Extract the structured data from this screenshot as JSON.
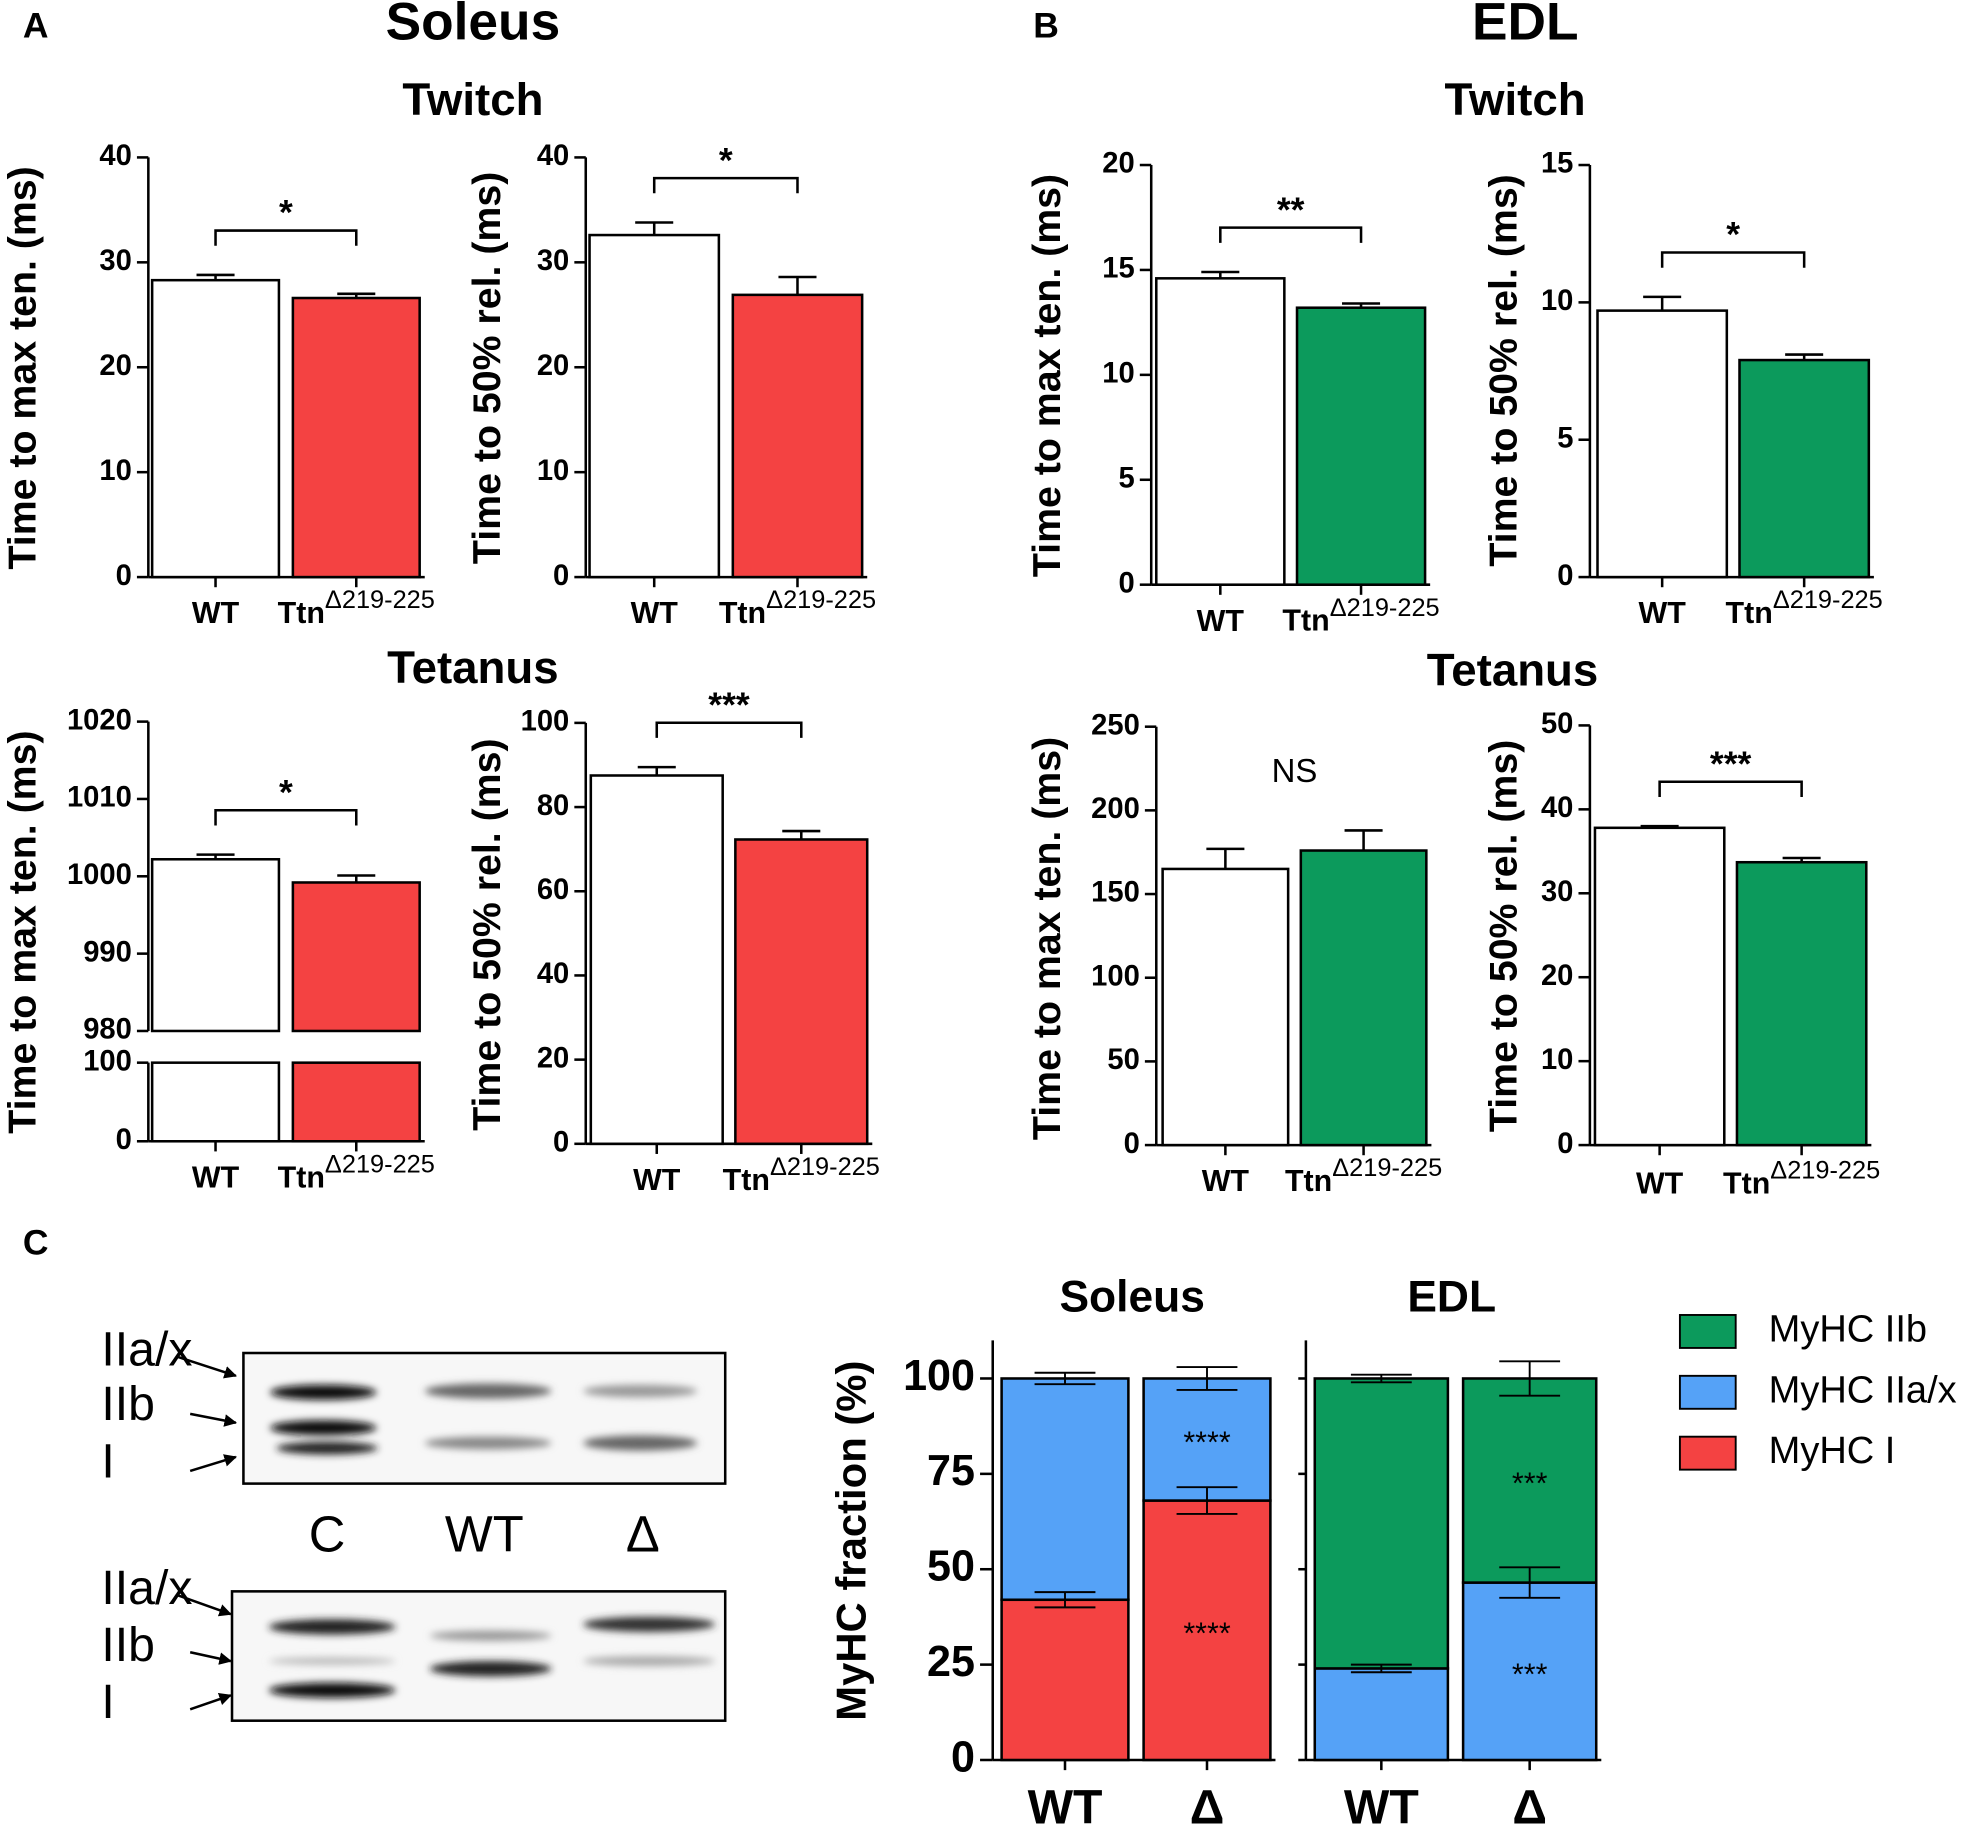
{
  "panels": [
    {
      "label": "A",
      "title": "Soleus",
      "sections": [
        "Twitch",
        "Tetanus"
      ]
    },
    {
      "label": "B",
      "title": "EDL",
      "sections": [
        "Twitch",
        "Tetanus"
      ]
    },
    {
      "label": "C"
    }
  ],
  "blot": {
    "gels": [
      {
        "bands": [
          "IIa/x",
          "IIb",
          "I"
        ]
      },
      {
        "bands": [
          "IIa/x",
          "IIb",
          "I"
        ]
      }
    ],
    "lanes": [
      "C",
      "WT",
      "Δ"
    ]
  },
  "chart_data": [
    {
      "type": "bar",
      "ylabel": "Time to max ten. (ms)",
      "categories": [
        "WT",
        "TtnΔ219-225"
      ],
      "values": [
        28.3,
        26.6
      ],
      "errors": [
        0.5,
        0.4
      ],
      "colors": [
        "#ffffff",
        "#f44242"
      ],
      "ylim": [
        0,
        40
      ],
      "yticks": [
        0,
        10,
        20,
        30,
        40
      ],
      "annotation": "*",
      "bracket": true
    },
    {
      "type": "bar",
      "ylabel": "Time to 50% rel. (ms)",
      "categories": [
        "WT",
        "TtnΔ219-225"
      ],
      "values": [
        32.6,
        26.9
      ],
      "errors": [
        1.2,
        1.7
      ],
      "colors": [
        "#ffffff",
        "#f44242"
      ],
      "ylim": [
        0,
        40
      ],
      "yticks": [
        0,
        10,
        20,
        30,
        40
      ],
      "annotation": "*",
      "bracket": true
    },
    {
      "type": "bar",
      "ylabel": "Time to max ten. (ms)",
      "categories": [
        "WT",
        "TtnΔ219-225"
      ],
      "values": [
        14.6,
        13.2
      ],
      "errors": [
        0.3,
        0.2
      ],
      "colors": [
        "#ffffff",
        "#0c9a5c"
      ],
      "ylim": [
        0,
        20
      ],
      "yticks": [
        0,
        5,
        10,
        15,
        20
      ],
      "annotation": "**",
      "bracket": true
    },
    {
      "type": "bar",
      "ylabel": "Time to 50% rel. (ms)",
      "categories": [
        "WT",
        "TtnΔ219-225"
      ],
      "values": [
        9.7,
        7.9
      ],
      "errors": [
        0.5,
        0.2
      ],
      "colors": [
        "#ffffff",
        "#0c9a5c"
      ],
      "ylim": [
        0,
        15
      ],
      "yticks": [
        0,
        5,
        10,
        15
      ],
      "annotation": "*",
      "bracket": true
    },
    {
      "type": "bar",
      "ylabel": "Time to max ten. (ms)",
      "categories": [
        "WT",
        "TtnΔ219-225"
      ],
      "values": [
        1002.2,
        999.2
      ],
      "errors": [
        0.6,
        0.9
      ],
      "colors": [
        "#ffffff",
        "#f44242"
      ],
      "ylim": [
        0,
        1020
      ],
      "ybreak": [
        100,
        980
      ],
      "yticks": [
        0,
        100,
        980,
        990,
        1000,
        1010,
        1020
      ],
      "annotation": "*",
      "bracket": true
    },
    {
      "type": "bar",
      "ylabel": "Time to 50% rel. (ms)",
      "categories": [
        "WT",
        "TtnΔ219-225"
      ],
      "values": [
        87.5,
        72.3
      ],
      "errors": [
        2,
        2
      ],
      "colors": [
        "#ffffff",
        "#f44242"
      ],
      "ylim": [
        0,
        100
      ],
      "yticks": [
        0,
        20,
        40,
        60,
        80,
        100
      ],
      "annotation": "***",
      "bracket": true
    },
    {
      "type": "bar",
      "ylabel": "Time to max ten. (ms)",
      "categories": [
        "WT",
        "TtnΔ219-225"
      ],
      "values": [
        165,
        176
      ],
      "errors": [
        12,
        12
      ],
      "colors": [
        "#ffffff",
        "#0c9a5c"
      ],
      "ylim": [
        0,
        250
      ],
      "yticks": [
        0,
        50,
        100,
        150,
        200,
        250
      ],
      "annotation": "NS",
      "bracket": false
    },
    {
      "type": "bar",
      "ylabel": "Time to 50% rel. (ms)",
      "categories": [
        "WT",
        "TtnΔ219-225"
      ],
      "values": [
        37.8,
        33.7
      ],
      "errors": [
        0.2,
        0.5
      ],
      "colors": [
        "#ffffff",
        "#0c9a5c"
      ],
      "ylim": [
        0,
        50
      ],
      "yticks": [
        0,
        10,
        20,
        30,
        40,
        50
      ],
      "annotation": "***",
      "bracket": true
    },
    {
      "type": "stacked_bar",
      "title": "Soleus",
      "ylabel": "MyHC fraction (%)",
      "categories": [
        "WT",
        "Δ"
      ],
      "ylim": [
        0,
        110
      ],
      "yticks": [
        0,
        25,
        50,
        75,
        100
      ],
      "show_tick_labels": true,
      "series": [
        {
          "name": "MyHC IIa/x",
          "color": "#55a2f7",
          "values": [
            58,
            32
          ],
          "errors": [
            1.5,
            3
          ],
          "annotations": [
            null,
            "****"
          ]
        },
        {
          "name": "MyHC I",
          "color": "#f44242",
          "values": [
            42,
            68
          ],
          "errors": [
            2,
            3.5
          ],
          "annotations": [
            null,
            "****"
          ]
        }
      ]
    },
    {
      "type": "stacked_bar",
      "title": "EDL",
      "categories": [
        "WT",
        "Δ"
      ],
      "ylim": [
        0,
        110
      ],
      "yticks": [
        0,
        25,
        50,
        75,
        100
      ],
      "show_tick_labels": false,
      "series": [
        {
          "name": "MyHC IIb",
          "color": "#0c9a5c",
          "values": [
            76,
            53.5
          ],
          "errors": [
            1,
            4.5
          ],
          "annotations": [
            null,
            "***"
          ]
        },
        {
          "name": "MyHC IIa/x",
          "color": "#55a2f7",
          "values": [
            24,
            46.5
          ],
          "errors": [
            1,
            4
          ],
          "annotations": [
            null,
            "***"
          ]
        }
      ]
    }
  ]
}
